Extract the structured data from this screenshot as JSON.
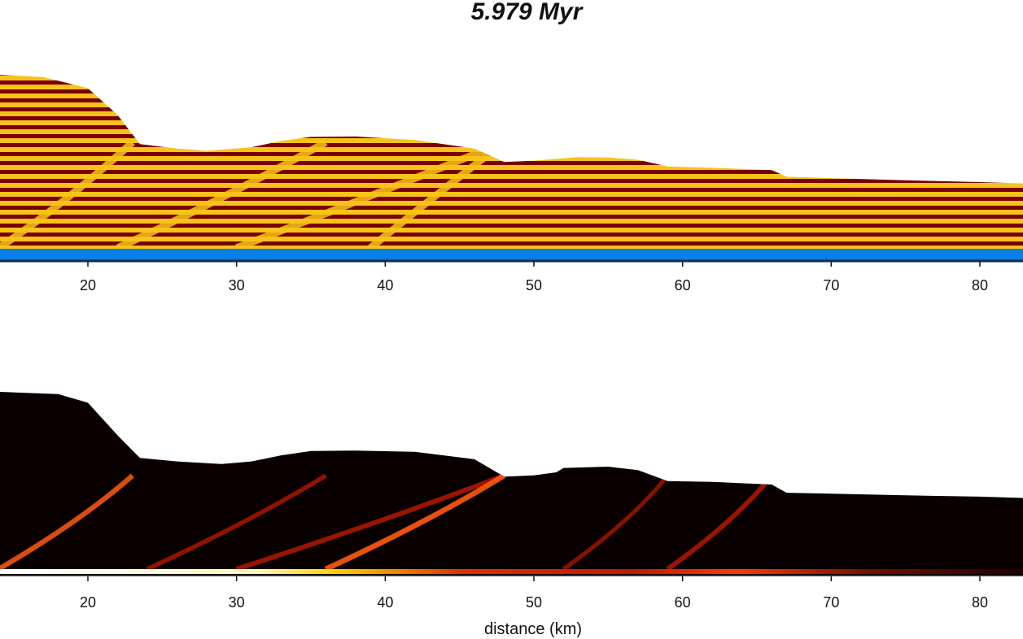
{
  "title": "5.979 Myr",
  "chart_data": [
    {
      "type": "heatmap",
      "panel": "top",
      "description_label": "",
      "x_ticks": [
        20,
        30,
        40,
        50,
        60,
        70,
        80
      ],
      "xlim": [
        14,
        83
      ],
      "colors": {
        "layer_dark": "#7a0000",
        "layer_light": "#f7c31a",
        "base": "#0a7fe6",
        "base_line": "#0d2a52"
      },
      "surface_profile": [
        {
          "x": 14,
          "top": 0.0
        },
        {
          "x": 17,
          "top": 0.5
        },
        {
          "x": 20,
          "top": 3.0
        },
        {
          "x": 22,
          "top": 9.0
        },
        {
          "x": 23.5,
          "top": 15.5
        },
        {
          "x": 26,
          "top": 16.5
        },
        {
          "x": 28,
          "top": 17.0
        },
        {
          "x": 31,
          "top": 16.2
        },
        {
          "x": 33,
          "top": 14.8
        },
        {
          "x": 35,
          "top": 13.9
        },
        {
          "x": 38,
          "top": 13.8
        },
        {
          "x": 42,
          "top": 14.6
        },
        {
          "x": 46,
          "top": 16.5
        },
        {
          "x": 48,
          "top": 19.5
        },
        {
          "x": 50,
          "top": 19.2
        },
        {
          "x": 53,
          "top": 18.4
        },
        {
          "x": 55,
          "top": 18.5
        },
        {
          "x": 57,
          "top": 19.0
        },
        {
          "x": 59,
          "top": 20.5
        },
        {
          "x": 62,
          "top": 20.8
        },
        {
          "x": 66,
          "top": 21.3
        },
        {
          "x": 67,
          "top": 22.8
        },
        {
          "x": 70,
          "top": 23.1
        },
        {
          "x": 75,
          "top": 23.6
        },
        {
          "x": 80,
          "top": 24.0
        },
        {
          "x": 83,
          "top": 24.3
        }
      ]
    },
    {
      "type": "heatmap",
      "panel": "bottom",
      "x_ticks": [
        20,
        30,
        40,
        50,
        60,
        70,
        80
      ],
      "xlim": [
        14,
        83
      ],
      "xlabel": "distance (km)",
      "colors": {
        "background": "#0a0000",
        "hot": "#ff2a00",
        "hotter": "#ffe000",
        "hottest": "#ffffff"
      },
      "surface_profile": [
        {
          "x": 14,
          "top": 0.0
        },
        {
          "x": 18,
          "top": 0.5
        },
        {
          "x": 20,
          "top": 2.5
        },
        {
          "x": 22,
          "top": 10.0
        },
        {
          "x": 23.5,
          "top": 15.2
        },
        {
          "x": 26,
          "top": 16.0
        },
        {
          "x": 29,
          "top": 16.6
        },
        {
          "x": 31,
          "top": 16.0
        },
        {
          "x": 33,
          "top": 14.6
        },
        {
          "x": 35,
          "top": 13.6
        },
        {
          "x": 38,
          "top": 13.5
        },
        {
          "x": 42,
          "top": 13.8
        },
        {
          "x": 46,
          "top": 15.5
        },
        {
          "x": 48,
          "top": 19.5
        },
        {
          "x": 50,
          "top": 19.2
        },
        {
          "x": 51.5,
          "top": 18.5
        },
        {
          "x": 52,
          "top": 17.5
        },
        {
          "x": 55,
          "top": 17.2
        },
        {
          "x": 57,
          "top": 18.0
        },
        {
          "x": 59,
          "top": 20.5
        },
        {
          "x": 62,
          "top": 20.7
        },
        {
          "x": 66,
          "top": 21.3
        },
        {
          "x": 67,
          "top": 23.2
        },
        {
          "x": 70,
          "top": 23.4
        },
        {
          "x": 75,
          "top": 23.8
        },
        {
          "x": 80,
          "top": 24.1
        },
        {
          "x": 83,
          "top": 24.4
        }
      ],
      "shear_bands": [
        {
          "x0": 14,
          "x1": 23,
          "intensity": 0.8
        },
        {
          "x0": 24,
          "x1": 36,
          "intensity": 0.6
        },
        {
          "x0": 30,
          "x1": 48,
          "intensity": 0.7
        },
        {
          "x0": 36,
          "x1": 48,
          "intensity": 0.9
        },
        {
          "x0": 52,
          "x1": 59,
          "intensity": 0.5
        },
        {
          "x0": 59,
          "x1": 66,
          "intensity": 0.7
        }
      ]
    }
  ]
}
